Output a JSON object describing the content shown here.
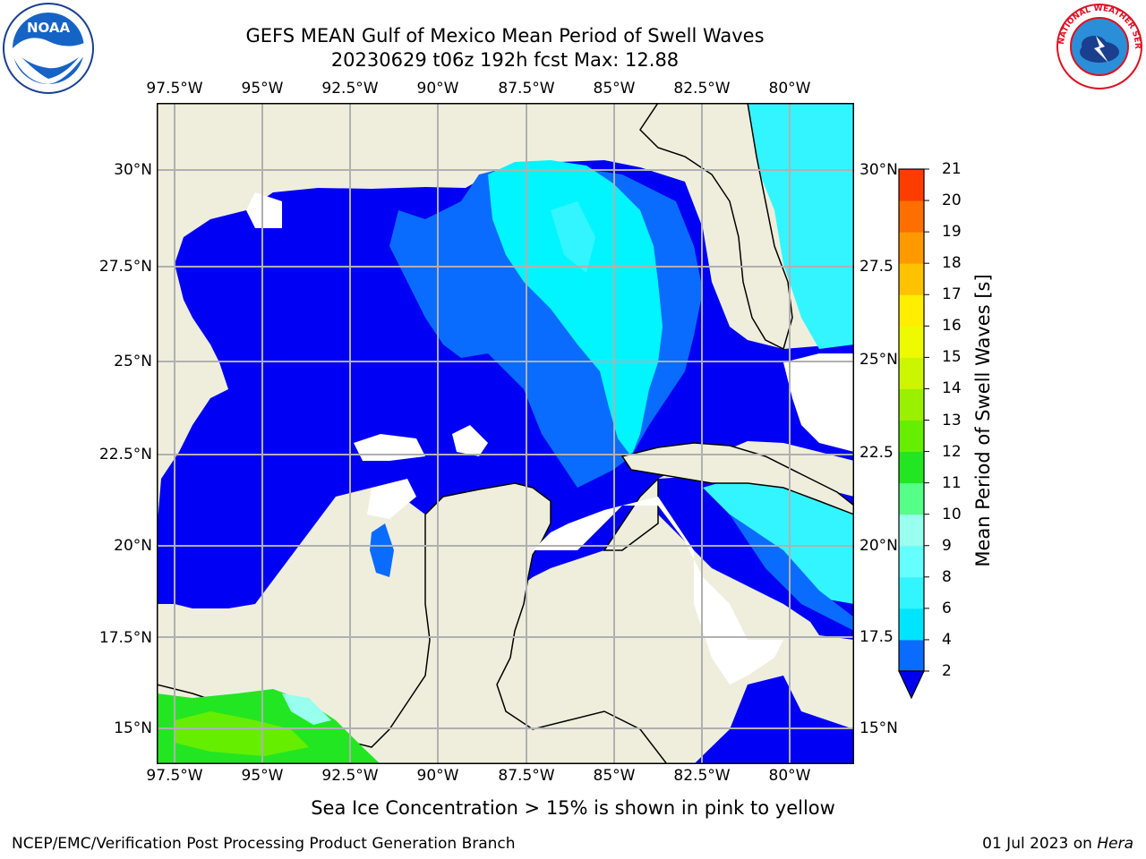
{
  "title_line1": "GEFS MEAN Gulf of Mexico Mean Period of Swell Waves",
  "title_line2": "20230629 t06z 192h fcst   Max: 12.88",
  "caption": "Sea Ice Concentration > 15% is shown in pink to yellow",
  "footer_left": "NCEP/EMC/Verification Post Processing Product Generation Branch",
  "footer_right_date": "01 Jul 2023 on ",
  "footer_right_machine": "Hera",
  "colorbar": {
    "title": "Mean Period of Swell Waves [s]",
    "labels": [
      "2",
      "4",
      "6",
      "8",
      "9",
      "10",
      "11",
      "12",
      "13",
      "14",
      "15",
      "16",
      "17",
      "18",
      "19",
      "20",
      "21"
    ],
    "colors": [
      "#0a6cff",
      "#00e5ff",
      "#33f5ff",
      "#66ffff",
      "#99ffee",
      "#55ff88",
      "#22e622",
      "#66ee00",
      "#99f000",
      "#ccf500",
      "#eefa00",
      "#ffee00",
      "#ffc200",
      "#ff9900",
      "#ff6e00",
      "#ff3c00",
      "#ff0000"
    ],
    "extend_color": "#0000ee"
  },
  "map": {
    "lon_labels": [
      "97.5°W",
      "95°W",
      "92.5°W",
      "90°W",
      "87.5°W",
      "85°W",
      "82.5°W",
      "80°W"
    ],
    "lat_labels_left": [
      "30°N",
      "27.5°N",
      "25°N",
      "22.5°N",
      "20°N",
      "17.5°N",
      "15°N"
    ],
    "lat_labels_right": [
      "30°N",
      "27.5",
      "25°N",
      "22.5",
      "20°N",
      "17.5",
      "15°N"
    ],
    "land_color": "#efeedd",
    "ocean_color": "#0000f5",
    "grid_color": "#b0b0b0"
  },
  "logos": {
    "noaa_text": "NOAA",
    "nws_text": "NATIONAL WEATHER SERVICE"
  }
}
